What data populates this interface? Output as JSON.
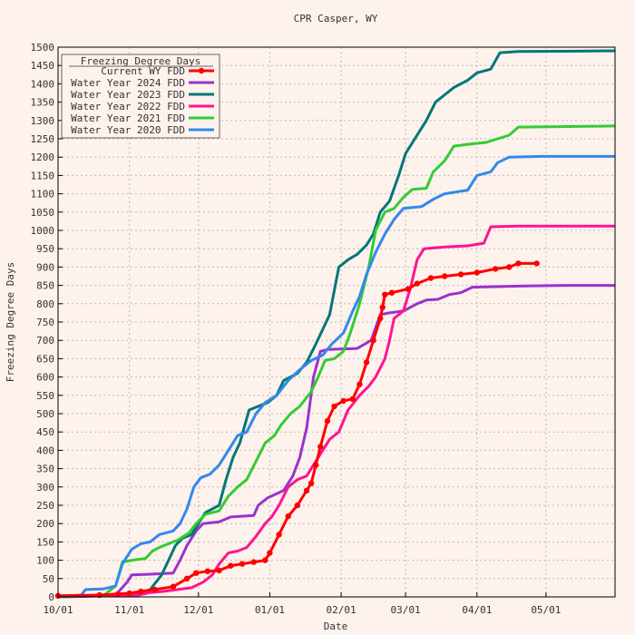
{
  "chart_data": {
    "type": "line",
    "title": "CPR Casper, WY",
    "xlabel": "Date",
    "ylabel": "Freezing Degree Days",
    "ylim": [
      0,
      1500
    ],
    "yticks": [
      0,
      50,
      100,
      150,
      200,
      250,
      300,
      350,
      400,
      450,
      500,
      550,
      600,
      650,
      700,
      750,
      800,
      850,
      900,
      950,
      1000,
      1050,
      1100,
      1150,
      1200,
      1250,
      1300,
      1350,
      1400,
      1450,
      1500
    ],
    "xlim_days": [
      0,
      242
    ],
    "xticks": [
      {
        "label": "10/01",
        "day": 0
      },
      {
        "label": "11/01",
        "day": 31
      },
      {
        "label": "12/01",
        "day": 61
      },
      {
        "label": "01/01",
        "day": 92
      },
      {
        "label": "02/01",
        "day": 123
      },
      {
        "label": "03/01",
        "day": 151
      },
      {
        "label": "04/01",
        "day": 182
      },
      {
        "label": "05/01",
        "day": 212
      }
    ],
    "grid": true,
    "legend": {
      "title": "Freezing Degree Days",
      "position": "top-left"
    },
    "series": [
      {
        "name": "Current WY FDD",
        "color": "#ff0000",
        "markers": true,
        "points": [
          [
            0,
            3
          ],
          [
            18,
            5
          ],
          [
            26,
            8
          ],
          [
            31,
            10
          ],
          [
            36,
            15
          ],
          [
            42,
            20
          ],
          [
            50,
            28
          ],
          [
            56,
            50
          ],
          [
            60,
            65
          ],
          [
            65,
            70
          ],
          [
            70,
            72
          ],
          [
            75,
            85
          ],
          [
            80,
            90
          ],
          [
            85,
            95
          ],
          [
            90,
            100
          ],
          [
            92,
            120
          ],
          [
            96,
            170
          ],
          [
            100,
            220
          ],
          [
            104,
            250
          ],
          [
            108,
            290
          ],
          [
            110,
            310
          ],
          [
            112,
            360
          ],
          [
            114,
            410
          ],
          [
            117,
            480
          ],
          [
            120,
            520
          ],
          [
            124,
            535
          ],
          [
            128,
            540
          ],
          [
            131,
            580
          ],
          [
            134,
            640
          ],
          [
            137,
            700
          ],
          [
            140,
            760
          ],
          [
            141,
            790
          ],
          [
            142,
            825
          ],
          [
            145,
            830
          ],
          [
            152,
            840
          ],
          [
            156,
            855
          ],
          [
            162,
            870
          ],
          [
            168,
            875
          ],
          [
            175,
            880
          ],
          [
            182,
            885
          ],
          [
            190,
            895
          ],
          [
            196,
            900
          ],
          [
            200,
            910
          ],
          [
            208,
            910
          ]
        ]
      },
      {
        "name": "Water Year 2024 FDD",
        "color": "#9933cc",
        "markers": false,
        "points": [
          [
            0,
            0
          ],
          [
            25,
            5
          ],
          [
            30,
            40
          ],
          [
            32,
            60
          ],
          [
            40,
            62
          ],
          [
            50,
            65
          ],
          [
            53,
            100
          ],
          [
            56,
            140
          ],
          [
            60,
            180
          ],
          [
            63,
            200
          ],
          [
            70,
            205
          ],
          [
            75,
            218
          ],
          [
            85,
            222
          ],
          [
            87,
            250
          ],
          [
            91,
            270
          ],
          [
            98,
            290
          ],
          [
            102,
            330
          ],
          [
            105,
            380
          ],
          [
            108,
            460
          ],
          [
            111,
            600
          ],
          [
            114,
            670
          ],
          [
            117,
            675
          ],
          [
            130,
            678
          ],
          [
            136,
            700
          ],
          [
            140,
            770
          ],
          [
            144,
            775
          ],
          [
            150,
            780
          ],
          [
            156,
            800
          ],
          [
            160,
            810
          ],
          [
            165,
            812
          ],
          [
            170,
            825
          ],
          [
            175,
            830
          ],
          [
            180,
            845
          ],
          [
            200,
            848
          ],
          [
            220,
            850
          ],
          [
            242,
            850
          ]
        ]
      },
      {
        "name": "Water Year 2023 FDD",
        "color": "#007777",
        "markers": false,
        "points": [
          [
            0,
            0
          ],
          [
            30,
            5
          ],
          [
            35,
            10
          ],
          [
            40,
            20
          ],
          [
            45,
            60
          ],
          [
            48,
            100
          ],
          [
            51,
            140
          ],
          [
            54,
            160
          ],
          [
            58,
            170
          ],
          [
            61,
            200
          ],
          [
            64,
            230
          ],
          [
            70,
            250
          ],
          [
            73,
            320
          ],
          [
            76,
            380
          ],
          [
            79,
            420
          ],
          [
            83,
            510
          ],
          [
            87,
            520
          ],
          [
            91,
            530
          ],
          [
            95,
            550
          ],
          [
            98,
            590
          ],
          [
            104,
            610
          ],
          [
            108,
            640
          ],
          [
            112,
            690
          ],
          [
            118,
            770
          ],
          [
            122,
            900
          ],
          [
            126,
            920
          ],
          [
            130,
            935
          ],
          [
            134,
            960
          ],
          [
            137,
            990
          ],
          [
            140,
            1050
          ],
          [
            144,
            1080
          ],
          [
            148,
            1150
          ],
          [
            151,
            1210
          ],
          [
            155,
            1250
          ],
          [
            160,
            1300
          ],
          [
            164,
            1350
          ],
          [
            168,
            1370
          ],
          [
            172,
            1390
          ],
          [
            178,
            1410
          ],
          [
            182,
            1430
          ],
          [
            188,
            1440
          ],
          [
            192,
            1485
          ],
          [
            200,
            1488
          ],
          [
            242,
            1490
          ]
        ]
      },
      {
        "name": "Water Year 2022 FDD",
        "color": "#ff1493",
        "markers": false,
        "points": [
          [
            0,
            0
          ],
          [
            35,
            5
          ],
          [
            40,
            12
          ],
          [
            46,
            15
          ],
          [
            52,
            20
          ],
          [
            58,
            25
          ],
          [
            63,
            40
          ],
          [
            67,
            60
          ],
          [
            70,
            90
          ],
          [
            74,
            120
          ],
          [
            78,
            125
          ],
          [
            82,
            135
          ],
          [
            86,
            165
          ],
          [
            90,
            200
          ],
          [
            93,
            220
          ],
          [
            96,
            250
          ],
          [
            100,
            300
          ],
          [
            104,
            320
          ],
          [
            108,
            330
          ],
          [
            111,
            360
          ],
          [
            114,
            390
          ],
          [
            118,
            430
          ],
          [
            122,
            450
          ],
          [
            126,
            510
          ],
          [
            131,
            550
          ],
          [
            135,
            575
          ],
          [
            138,
            600
          ],
          [
            142,
            650
          ],
          [
            144,
            700
          ],
          [
            146,
            760
          ],
          [
            150,
            780
          ],
          [
            153,
            840
          ],
          [
            156,
            920
          ],
          [
            159,
            950
          ],
          [
            168,
            955
          ],
          [
            178,
            958
          ],
          [
            185,
            965
          ],
          [
            188,
            1010
          ],
          [
            200,
            1012
          ],
          [
            242,
            1012
          ]
        ]
      },
      {
        "name": "Water Year 2021 FDD",
        "color": "#33cc33",
        "markers": false,
        "points": [
          [
            0,
            0
          ],
          [
            20,
            5
          ],
          [
            25,
            30
          ],
          [
            28,
            95
          ],
          [
            32,
            100
          ],
          [
            38,
            105
          ],
          [
            41,
            125
          ],
          [
            44,
            135
          ],
          [
            52,
            155
          ],
          [
            57,
            175
          ],
          [
            60,
            200
          ],
          [
            64,
            225
          ],
          [
            70,
            235
          ],
          [
            74,
            275
          ],
          [
            78,
            300
          ],
          [
            82,
            320
          ],
          [
            86,
            370
          ],
          [
            90,
            420
          ],
          [
            94,
            440
          ],
          [
            97,
            470
          ],
          [
            101,
            500
          ],
          [
            105,
            520
          ],
          [
            110,
            560
          ],
          [
            113,
            600
          ],
          [
            116,
            645
          ],
          [
            120,
            650
          ],
          [
            124,
            670
          ],
          [
            127,
            720
          ],
          [
            131,
            800
          ],
          [
            135,
            900
          ],
          [
            138,
            1000
          ],
          [
            142,
            1050
          ],
          [
            146,
            1060
          ],
          [
            150,
            1090
          ],
          [
            154,
            1112
          ],
          [
            160,
            1115
          ],
          [
            163,
            1160
          ],
          [
            168,
            1190
          ],
          [
            172,
            1230
          ],
          [
            178,
            1235
          ],
          [
            186,
            1240
          ],
          [
            191,
            1250
          ],
          [
            196,
            1260
          ],
          [
            200,
            1282
          ],
          [
            242,
            1285
          ]
        ]
      },
      {
        "name": "Water Year 2020 FDD",
        "color": "#3388ee",
        "markers": false,
        "points": [
          [
            0,
            0
          ],
          [
            10,
            5
          ],
          [
            12,
            20
          ],
          [
            20,
            22
          ],
          [
            25,
            30
          ],
          [
            28,
            90
          ],
          [
            32,
            130
          ],
          [
            36,
            145
          ],
          [
            40,
            150
          ],
          [
            44,
            170
          ],
          [
            50,
            180
          ],
          [
            53,
            200
          ],
          [
            56,
            240
          ],
          [
            59,
            300
          ],
          [
            62,
            325
          ],
          [
            66,
            335
          ],
          [
            70,
            360
          ],
          [
            74,
            400
          ],
          [
            78,
            440
          ],
          [
            82,
            450
          ],
          [
            86,
            500
          ],
          [
            90,
            530
          ],
          [
            95,
            550
          ],
          [
            100,
            590
          ],
          [
            105,
            620
          ],
          [
            110,
            645
          ],
          [
            115,
            660
          ],
          [
            119,
            690
          ],
          [
            124,
            720
          ],
          [
            128,
            780
          ],
          [
            131,
            820
          ],
          [
            134,
            880
          ],
          [
            138,
            940
          ],
          [
            142,
            990
          ],
          [
            146,
            1030
          ],
          [
            150,
            1060
          ],
          [
            158,
            1065
          ],
          [
            163,
            1085
          ],
          [
            168,
            1100
          ],
          [
            178,
            1110
          ],
          [
            182,
            1150
          ],
          [
            188,
            1160
          ],
          [
            191,
            1185
          ],
          [
            196,
            1200
          ],
          [
            210,
            1202
          ],
          [
            242,
            1202
          ]
        ]
      }
    ]
  }
}
